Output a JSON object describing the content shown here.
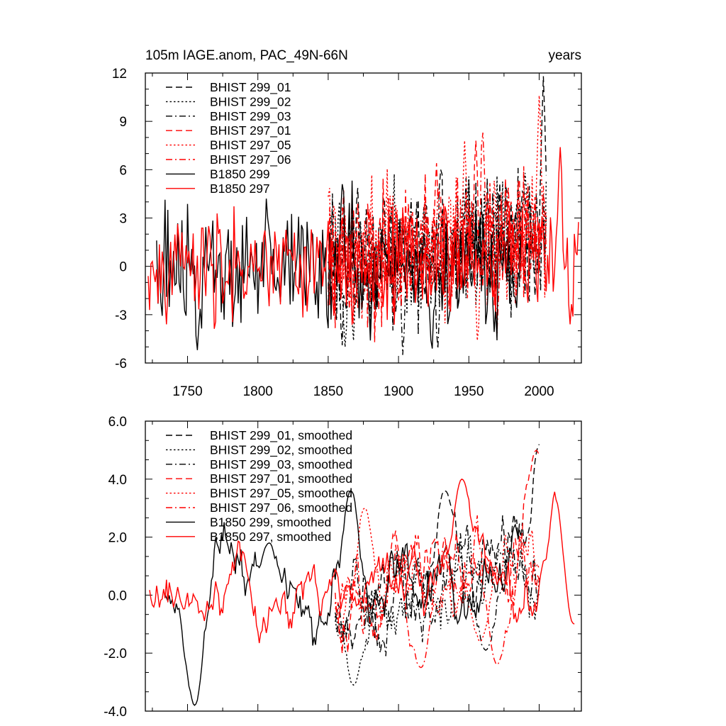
{
  "colors": {
    "bhist_299": "#000000",
    "bhist_297": "#ff0000",
    "frame": "#000000"
  },
  "chart_data": [
    {
      "type": "line",
      "title_left": "105m IAGE.anom, PAC_49N-66N",
      "title_right": "years",
      "xlim": [
        1720,
        2030
      ],
      "ylim": [
        -6,
        12
      ],
      "x_ticks": [
        1750,
        1800,
        1850,
        1900,
        1950,
        2000
      ],
      "y_ticks": [
        -6,
        -3,
        0,
        3,
        6,
        9,
        12
      ],
      "y_tick_labels": [
        "-6",
        "-3",
        "0",
        "3",
        "6",
        "9",
        "12"
      ],
      "x_tick_labels": [
        "1750",
        "1800",
        "1850",
        "1900",
        "1950",
        "2000"
      ],
      "legend_position": "top-left",
      "series": [
        {
          "name": "BHIST 299_01",
          "style": "dashed",
          "color": "#000000",
          "x_start": 1850,
          "x_end": 2005,
          "seed": 11,
          "mean": 0.6,
          "trend": 2.2,
          "amp": 2.1,
          "smooth": 0,
          "extremes": [
            [
              1860,
              -4.9
            ],
            [
              1930,
              6.0
            ],
            [
              2003,
              11.8
            ]
          ]
        },
        {
          "name": "BHIST 299_02",
          "style": "dotted",
          "color": "#000000",
          "x_start": 1850,
          "x_end": 2005,
          "seed": 12,
          "mean": 0.6,
          "trend": 2.0,
          "amp": 2.1,
          "smooth": 0,
          "extremes": [
            [
              1862,
              -5.0
            ],
            [
              1868,
              -4.6
            ],
            [
              1990,
              5.8
            ]
          ]
        },
        {
          "name": "BHIST 299_03",
          "style": "dashdot",
          "color": "#000000",
          "x_start": 1850,
          "x_end": 2005,
          "seed": 13,
          "mean": 0.6,
          "trend": 2.0,
          "amp": 2.1,
          "smooth": 0,
          "extremes": [
            [
              1903,
              -5.5
            ],
            [
              1928,
              -5.1
            ]
          ]
        },
        {
          "name": "BHIST 297_01",
          "style": "dashed",
          "color": "#ff0000",
          "x_start": 1850,
          "x_end": 2005,
          "seed": 21,
          "mean": 0.8,
          "trend": 2.2,
          "amp": 2.1,
          "smooth": 0,
          "extremes": [
            [
              1927,
              6.4
            ],
            [
              1955,
              7.8
            ]
          ]
        },
        {
          "name": "BHIST 297_05",
          "style": "dotted",
          "color": "#ff0000",
          "x_start": 1850,
          "x_end": 2005,
          "seed": 22,
          "mean": 0.8,
          "trend": 2.0,
          "amp": 2.1,
          "smooth": 0,
          "extremes": [
            [
              1947,
              7.8
            ],
            [
              1956,
              -4.6
            ],
            [
              2000,
              10.6
            ]
          ]
        },
        {
          "name": "BHIST 297_06",
          "style": "dashdot",
          "color": "#ff0000",
          "x_start": 1850,
          "x_end": 2005,
          "seed": 23,
          "mean": 0.8,
          "trend": 2.0,
          "amp": 2.1,
          "smooth": 0,
          "extremes": [
            [
              1960,
              8.3
            ],
            [
              1970,
              -4.2
            ]
          ]
        },
        {
          "name": "B1850 299",
          "style": "solid",
          "color": "#000000",
          "x_start": 1728,
          "x_end": 1987,
          "seed": 31,
          "mean": -0.2,
          "trend": 0.6,
          "amp": 2.0,
          "smooth": 0,
          "extremes": [
            [
              1757,
              -5.2
            ],
            [
              1806,
              4.2
            ],
            [
              1860,
              5.1
            ],
            [
              1880,
              -4.6
            ],
            [
              1924,
              -5.1
            ]
          ]
        },
        {
          "name": "B1850 297",
          "style": "solid",
          "color": "#ff0000",
          "x_start": 1722,
          "x_end": 2028,
          "seed": 32,
          "mean": 0.0,
          "trend": 0.8,
          "amp": 1.6,
          "smooth": 0,
          "extremes": [
            [
              1735,
              -3.6
            ],
            [
              1765,
              2.5
            ],
            [
              2015,
              7.4
            ],
            [
              2022,
              -3.6
            ]
          ]
        }
      ]
    },
    {
      "type": "line",
      "xlim": [
        1720,
        2030
      ],
      "ylim": [
        -4,
        6
      ],
      "x_ticks": [
        1750,
        1800,
        1850,
        1900,
        1950,
        2000
      ],
      "y_ticks": [
        -4,
        -2,
        0,
        2,
        4,
        6
      ],
      "y_tick_labels": [
        "-4.0",
        "-2.0",
        "0.0",
        "2.0",
        "4.0",
        "6.0"
      ],
      "legend_position": "top-left",
      "series": [
        {
          "name": "BHIST 299_01, smoothed",
          "style": "dashed",
          "color": "#000000",
          "x_start": 1855,
          "x_end": 2000,
          "seed": 41,
          "mean": 0.2,
          "trend": 1.0,
          "amp": 1.2,
          "smooth": 6,
          "extremes": [
            [
              1933,
              3.6
            ],
            [
              2000,
              5.2
            ]
          ]
        },
        {
          "name": "BHIST 299_02, smoothed",
          "style": "dotted",
          "color": "#000000",
          "x_start": 1855,
          "x_end": 2000,
          "seed": 42,
          "mean": 0.0,
          "trend": 1.0,
          "amp": 1.2,
          "smooth": 6,
          "extremes": [
            [
              1868,
              -3.1
            ]
          ]
        },
        {
          "name": "BHIST 299_03, smoothed",
          "style": "dashdot",
          "color": "#000000",
          "x_start": 1855,
          "x_end": 2000,
          "seed": 43,
          "mean": 0.0,
          "trend": 0.8,
          "amp": 1.2,
          "smooth": 6,
          "extremes": [
            [
              1962,
              -1.9
            ]
          ]
        },
        {
          "name": "BHIST 297_01, smoothed",
          "style": "dashed",
          "color": "#ff0000",
          "x_start": 1855,
          "x_end": 2000,
          "seed": 51,
          "mean": 0.5,
          "trend": 1.2,
          "amp": 1.2,
          "smooth": 6,
          "extremes": [
            [
              1998,
              5.0
            ]
          ]
        },
        {
          "name": "BHIST 297_05, smoothed",
          "style": "dotted",
          "color": "#ff0000",
          "x_start": 1855,
          "x_end": 2000,
          "seed": 52,
          "mean": 0.3,
          "trend": 1.0,
          "amp": 1.2,
          "smooth": 6,
          "extremes": [
            [
              1876,
              3.0
            ],
            [
              1958,
              -1.6
            ]
          ]
        },
        {
          "name": "BHIST 297_06, smoothed",
          "style": "dashdot",
          "color": "#ff0000",
          "x_start": 1855,
          "x_end": 2000,
          "seed": 53,
          "mean": 0.3,
          "trend": 1.0,
          "amp": 1.2,
          "smooth": 6,
          "extremes": [
            [
              1916,
              -2.5
            ],
            [
              1970,
              -2.4
            ]
          ]
        },
        {
          "name": "B1850 299, smoothed",
          "style": "solid",
          "color": "#000000",
          "x_start": 1734,
          "x_end": 1986,
          "seed": 61,
          "mean": 0.0,
          "trend": 0.5,
          "amp": 1.1,
          "smooth": 6,
          "extremes": [
            [
              1755,
              -3.8
            ],
            [
              1808,
              1.8
            ],
            [
              1866,
              3.6
            ]
          ]
        },
        {
          "name": "B1850 297, smoothed",
          "style": "solid",
          "color": "#ff0000",
          "x_start": 1723,
          "x_end": 2025,
          "seed": 62,
          "mean": 0.0,
          "trend": 0.7,
          "amp": 0.9,
          "smooth": 6,
          "extremes": [
            [
              1945,
              4.0
            ],
            [
              2013,
              3.8
            ],
            [
              2025,
              -1.0
            ]
          ]
        }
      ]
    }
  ]
}
